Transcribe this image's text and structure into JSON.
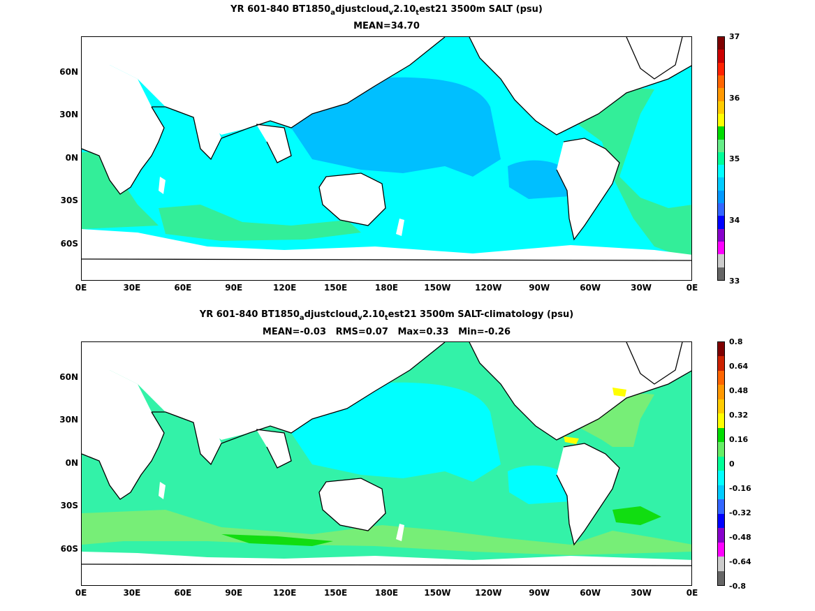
{
  "top": {
    "title_parts": {
      "a": "YR 601-840 BT1850",
      "b": "a",
      "c": "djustcloud",
      "d": "v",
      "e": "2.10",
      "f": "t",
      "g": "est21 3500m SALT (psu)"
    },
    "subtitle": "MEAN=34.70",
    "colorbar_labels": [
      "37",
      "36",
      "35",
      "34",
      "33"
    ],
    "colorbar_colors": [
      "#7f0000",
      "#cc0000",
      "#ff2200",
      "#ff6600",
      "#ff9900",
      "#ffcc00",
      "#ffff00",
      "#00dd00",
      "#66ee88",
      "#00ff99",
      "#00ffff",
      "#00ccff",
      "#0099ff",
      "#3366ff",
      "#0000ff",
      "#8800cc",
      "#ff00ff",
      "#cccccc",
      "#666666"
    ]
  },
  "bottom": {
    "title_parts": {
      "a": "YR 601-840 BT1850",
      "b": "a",
      "c": "djustcloud",
      "d": "v",
      "e": "2.10",
      "f": "t",
      "g": "est21 3500m SALT-climatology (psu)"
    },
    "stats": "MEAN=-0.03   RMS=0.07   Max=0.33   Min=-0.26",
    "colorbar_labels": [
      "0.8",
      "0.64",
      "0.48",
      "0.32",
      "0.16",
      "0",
      "-0.16",
      "-0.32",
      "-0.48",
      "-0.64",
      "-0.8"
    ],
    "colorbar_colors": [
      "#7f0000",
      "#cc2200",
      "#ff6600",
      "#ff9900",
      "#ffcc00",
      "#ffff00",
      "#00dd00",
      "#66ee66",
      "#00ff99",
      "#00ffff",
      "#00ccff",
      "#3366ff",
      "#0000ff",
      "#8800cc",
      "#ff00ff",
      "#cccccc",
      "#666666"
    ]
  },
  "axes": {
    "y_labels": [
      "60N",
      "30N",
      "0N",
      "30S",
      "60S"
    ],
    "x_labels": [
      "0E",
      "30E",
      "60E",
      "90E",
      "120E",
      "150E",
      "180E",
      "150W",
      "120W",
      "90W",
      "60W",
      "30W",
      "0E"
    ]
  },
  "colors": {
    "ocean_top_main": "#00ffff",
    "ocean_top_pacific": "#00bfff",
    "ocean_top_atlantic": "#33ee99",
    "ocean_bot_main": "#33f2a8",
    "ocean_bot_pacific": "#00ffff",
    "ocean_bot_green": "#77ee77",
    "ocean_bot_bright": "#11dd11",
    "land": "#ffffff",
    "coast": "#000000"
  }
}
